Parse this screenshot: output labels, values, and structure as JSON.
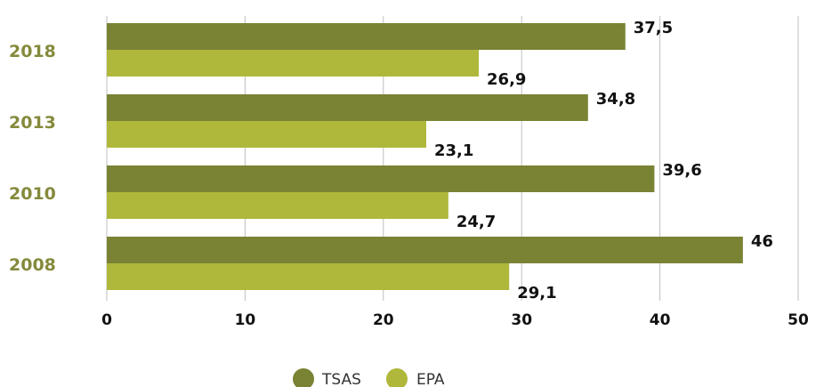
{
  "chart_data": {
    "type": "bar",
    "orientation": "horizontal",
    "categories": [
      "2018",
      "2013",
      "2010",
      "2008"
    ],
    "series": [
      {
        "name": "TSAS",
        "values": [
          37.5,
          34.8,
          39.6,
          46
        ],
        "value_labels": [
          "37,5",
          "34,8",
          "39,6",
          "46"
        ],
        "color": "#7a8234"
      },
      {
        "name": "EPA",
        "values": [
          26.9,
          23.1,
          24.7,
          29.1
        ],
        "value_labels": [
          "26,9",
          "23,1",
          "24,7",
          "29,1"
        ],
        "color": "#afb83a"
      }
    ],
    "xlim": [
      0,
      50
    ],
    "xticks": [
      0,
      10,
      20,
      30,
      40,
      50
    ],
    "xtick_labels": [
      "0",
      "10",
      "20",
      "30",
      "40",
      "50"
    ],
    "grid": "vertical",
    "legend": "bottom-center",
    "category_label_color": "#858a3c"
  }
}
